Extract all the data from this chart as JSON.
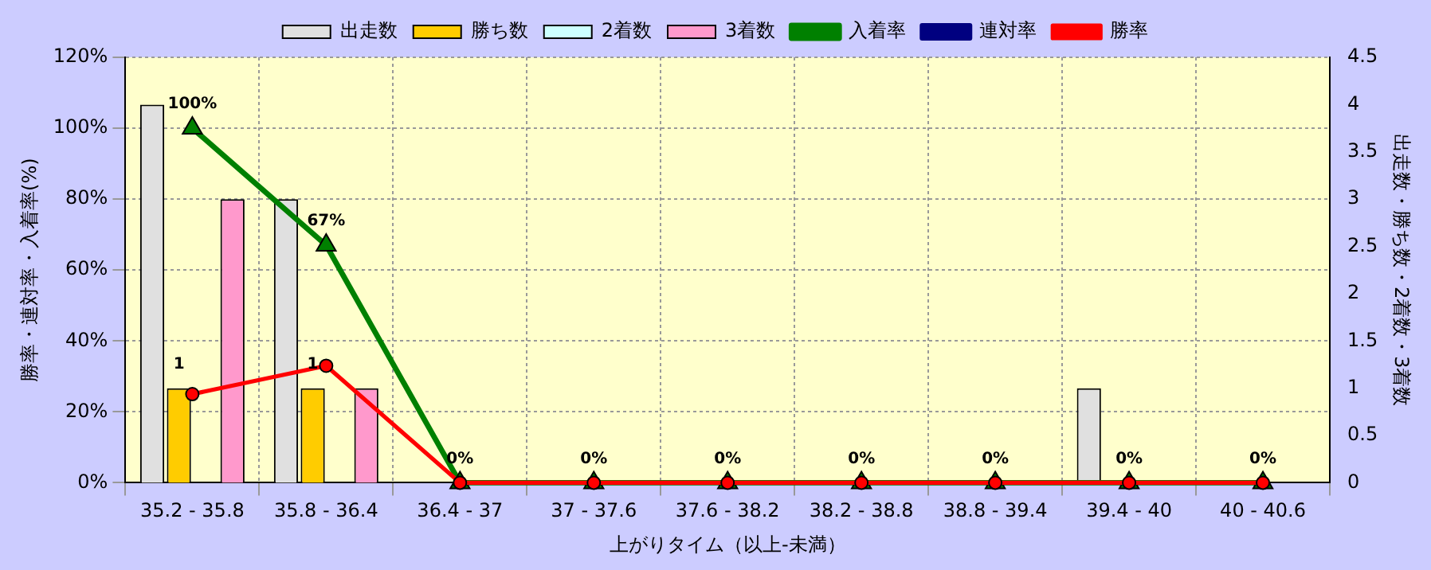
{
  "chart_data": {
    "type": "bar",
    "xlabel": "上がりタイム（以上-未満）",
    "ylabel": "勝率・連対率・入着率(%)",
    "y2label": "出走数・勝ち数・2着数・3着数",
    "categories": [
      "35.2 - 35.8",
      "35.8 - 36.4",
      "36.4 - 37",
      "37 - 37.6",
      "37.6 - 38.2",
      "38.2 - 38.8",
      "38.8 - 39.4",
      "39.4 - 40",
      "40 - 40.6"
    ],
    "series": [
      {
        "name": "出走数",
        "axis": "y2",
        "color": "#e0e0e0",
        "values": [
          4,
          3,
          0,
          0,
          0,
          0,
          0,
          1,
          0
        ]
      },
      {
        "name": "勝ち数",
        "axis": "y2",
        "color": "#ffcc00",
        "values": [
          1,
          1,
          0,
          0,
          0,
          0,
          0,
          0,
          0
        ],
        "value_labels": [
          "1",
          "1",
          null,
          null,
          null,
          null,
          null,
          null,
          null
        ]
      },
      {
        "name": "2着数",
        "axis": "y2",
        "color": "#ccffff",
        "values": [
          0,
          0,
          0,
          0,
          0,
          0,
          0,
          0,
          0
        ]
      },
      {
        "name": "3着数",
        "axis": "y2",
        "color": "#ff99cc",
        "values": [
          3,
          1,
          0,
          0,
          0,
          0,
          0,
          0,
          0
        ]
      },
      {
        "name": "入着率",
        "type": "line",
        "marker": "triangle",
        "color": "#008000",
        "values": [
          100,
          67,
          0,
          0,
          0,
          0,
          0,
          0,
          0
        ],
        "value_labels": [
          "100%",
          "67%",
          "0%",
          "0%",
          "0%",
          "0%",
          "0%",
          "0%",
          "0%"
        ]
      },
      {
        "name": "連対率",
        "type": "line",
        "marker": "diamond",
        "color": "#000080",
        "values": [
          null,
          null,
          null,
          null,
          null,
          null,
          null,
          null,
          null
        ]
      },
      {
        "name": "勝率",
        "type": "line",
        "marker": "circle",
        "color": "#ff0000",
        "values": [
          25,
          33,
          0,
          0,
          0,
          0,
          0,
          0,
          0
        ]
      }
    ],
    "ylim": [
      0,
      120
    ],
    "yticks": [
      {
        "value": 0,
        "label": "0%"
      },
      {
        "value": 20,
        "label": "20%"
      },
      {
        "value": 40,
        "label": "40%"
      },
      {
        "value": 60,
        "label": "60%"
      },
      {
        "value": 80,
        "label": "80%"
      },
      {
        "value": 100,
        "label": "100%"
      },
      {
        "value": 120,
        "label": "120%"
      }
    ],
    "y2lim": [
      0,
      4.5
    ],
    "y2ticks": [
      0,
      0.5,
      1,
      1.5,
      2,
      2.5,
      3,
      3.5,
      4,
      4.5
    ],
    "grid": true,
    "legend": "top"
  }
}
